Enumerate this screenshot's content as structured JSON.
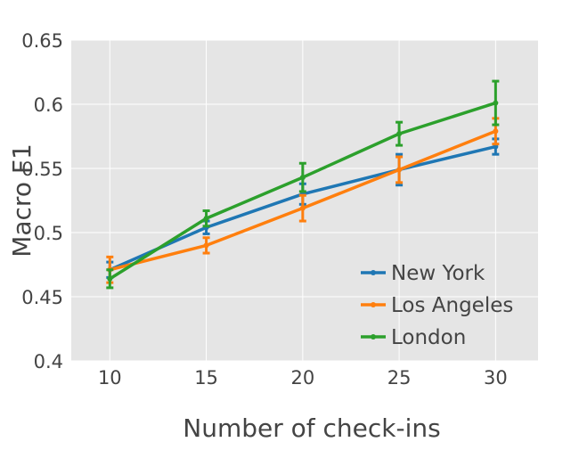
{
  "chart_data": {
    "type": "line",
    "xlabel": "Number of check-ins",
    "ylabel": "Macro F1",
    "x": [
      10,
      15,
      20,
      25,
      30
    ],
    "x_ticks": [
      "10",
      "15",
      "20",
      "25",
      "30"
    ],
    "y_ticks": [
      "0.4",
      "0.45",
      "0.5",
      "0.55",
      "0.6",
      "0.65"
    ],
    "xlim": [
      8,
      32.2
    ],
    "ylim": [
      0.4,
      0.65
    ],
    "grid": true,
    "legend_position": "bottom-right",
    "error_bars": true,
    "series": [
      {
        "name": "New York",
        "color": "#1f77b4",
        "values": [
          0.471,
          0.504,
          0.53,
          0.549,
          0.567
        ],
        "errors": [
          0.006,
          0.005,
          0.008,
          0.012,
          0.006
        ]
      },
      {
        "name": "Los Angeles",
        "color": "#ff7f0e",
        "values": [
          0.471,
          0.49,
          0.519,
          0.549,
          0.579
        ],
        "errors": [
          0.01,
          0.006,
          0.01,
          0.01,
          0.01
        ]
      },
      {
        "name": "London",
        "color": "#2ca02c",
        "values": [
          0.464,
          0.511,
          0.543,
          0.577,
          0.601
        ],
        "errors": [
          0.007,
          0.006,
          0.011,
          0.009,
          0.017
        ]
      }
    ]
  }
}
